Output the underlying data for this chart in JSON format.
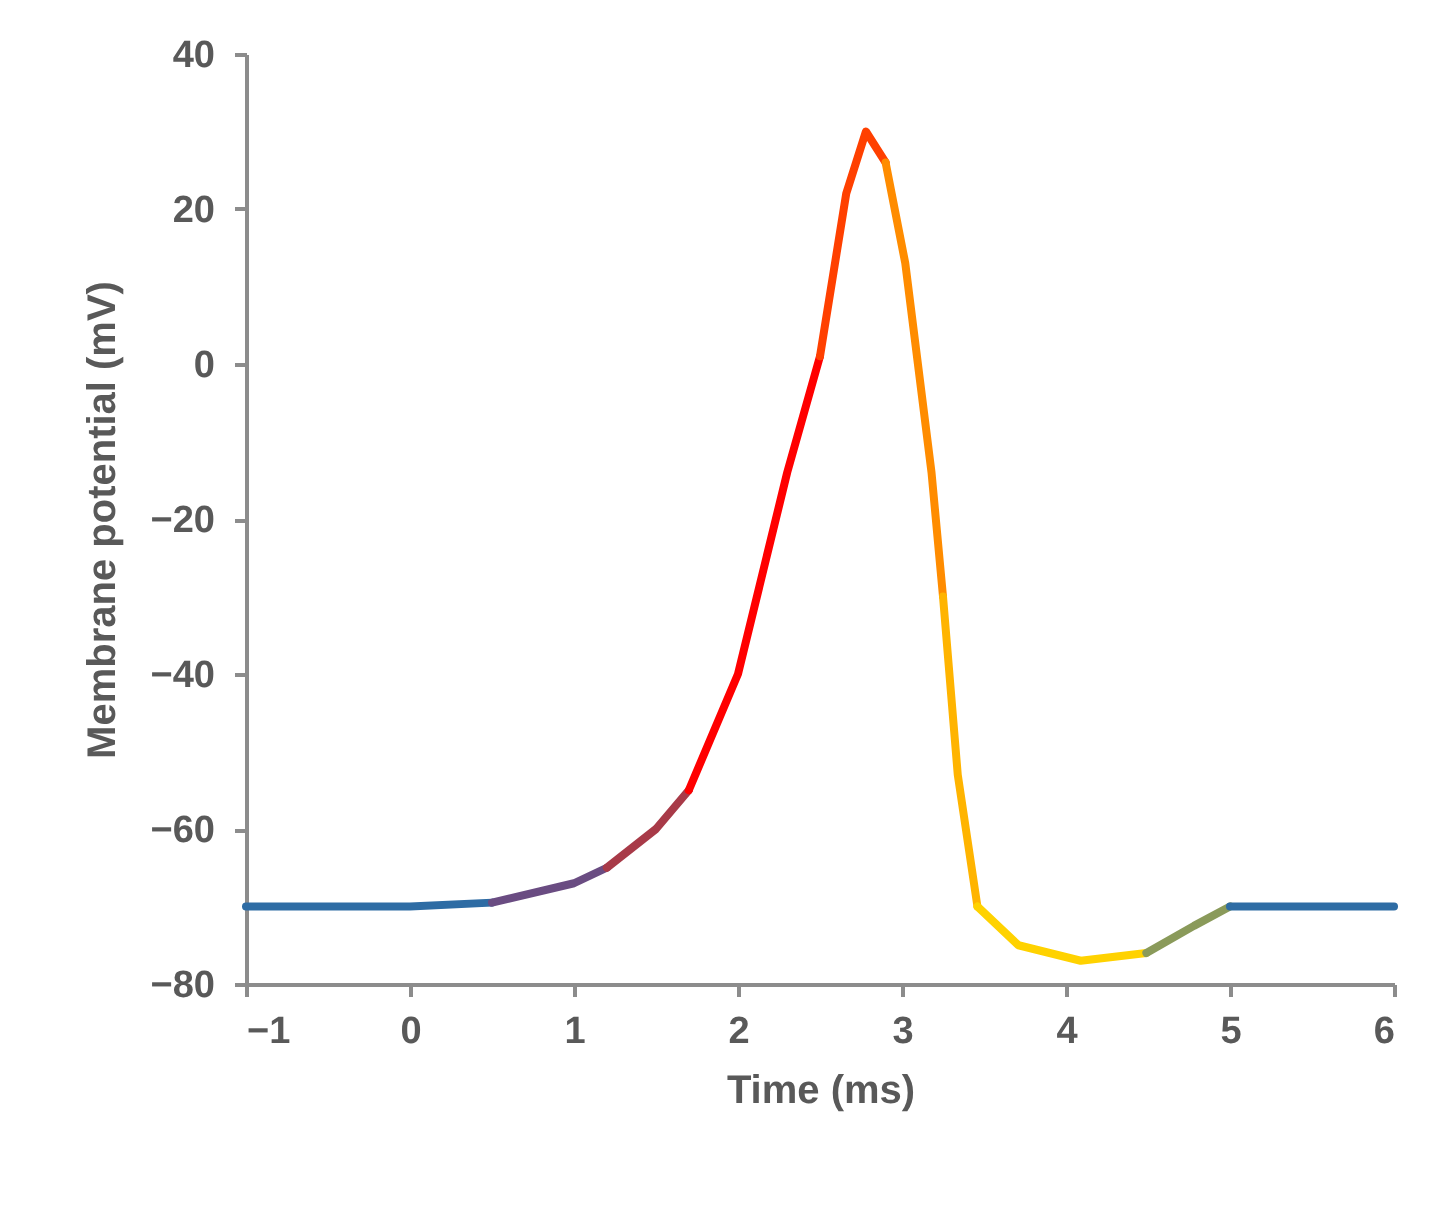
{
  "chart_data": {
    "type": "line",
    "xlabel": "Time (ms)",
    "ylabel": "Membrane potential (mV)",
    "xlim": [
      -1,
      6
    ],
    "xticks": [
      -1,
      0,
      1,
      2,
      3,
      4,
      5,
      6
    ],
    "ylim": [
      -80,
      40
    ],
    "yticks": [
      -80,
      -60,
      -40,
      -20,
      0,
      20,
      40
    ],
    "grid": false,
    "legend": false,
    "series": [
      {
        "color": "#2e6ca4",
        "x": [
          -1,
          0,
          0.5
        ],
        "values": [
          -70,
          -70,
          -69.5
        ]
      },
      {
        "color": "#6a4c82",
        "x": [
          0.5,
          1,
          1.2
        ],
        "values": [
          -69.5,
          -67,
          -65
        ]
      },
      {
        "color": "#a83a48",
        "x": [
          1.2,
          1.5,
          1.7
        ],
        "values": [
          -65,
          -60,
          -55
        ]
      },
      {
        "color": "#ff0000",
        "x": [
          1.7,
          2,
          2.3,
          2.5
        ],
        "values": [
          -55,
          -40,
          -14,
          1
        ]
      },
      {
        "color": "#ff4000",
        "x": [
          2.5,
          2.66,
          2.78,
          2.9
        ],
        "values": [
          1,
          22,
          30,
          26
        ]
      },
      {
        "color": "#ff8c00",
        "x": [
          2.9,
          3.02,
          3.18,
          3.25
        ],
        "values": [
          26,
          13,
          -14,
          -30
        ]
      },
      {
        "color": "#ffb400",
        "x": [
          3.25,
          3.34,
          3.46
        ],
        "values": [
          -30,
          -53,
          -70
        ]
      },
      {
        "color": "#ffd200",
        "x": [
          3.46,
          3.71,
          4.09,
          4.49
        ],
        "values": [
          -70,
          -75,
          -77,
          -76
        ]
      },
      {
        "color": "#8a9a5a",
        "x": [
          4.49,
          4.78,
          5
        ],
        "values": [
          -76,
          -72.5,
          -70
        ]
      },
      {
        "color": "#2e6ca4",
        "x": [
          5,
          6
        ],
        "values": [
          -70,
          -70
        ]
      }
    ]
  }
}
